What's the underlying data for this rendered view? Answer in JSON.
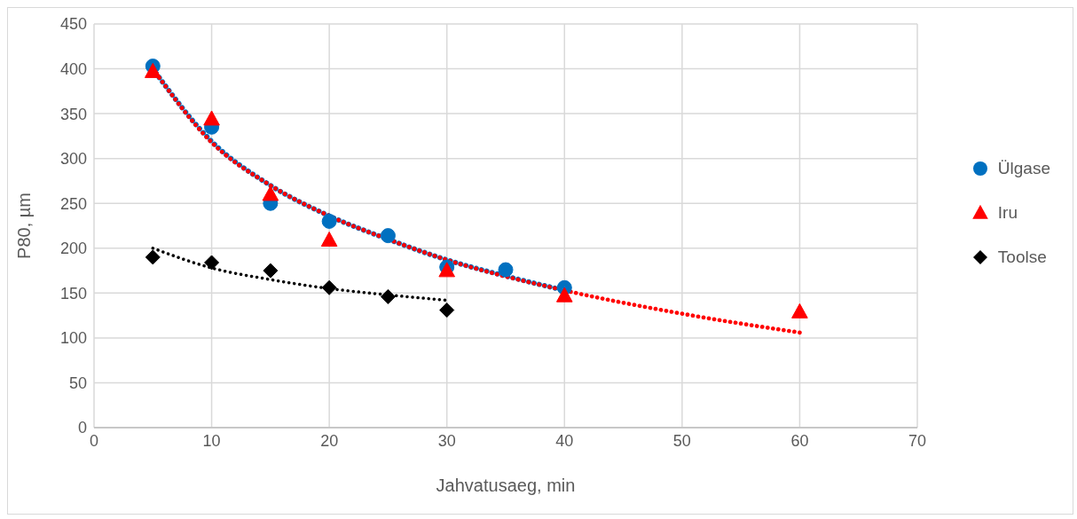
{
  "chart_data": {
    "type": "scatter",
    "xlabel": "Jahvatusaeg, min",
    "ylabel": "P80, µm",
    "xlim": [
      0,
      70
    ],
    "xticks": [
      0,
      10,
      20,
      30,
      40,
      50,
      60,
      70
    ],
    "ylim": [
      0,
      450
    ],
    "yticks": [
      0,
      50,
      100,
      150,
      200,
      250,
      300,
      350,
      400,
      450
    ],
    "grid": true,
    "legend": "right",
    "series": [
      {
        "name": "Ülgase",
        "type": "scatter",
        "color": "#0070c0",
        "marker": "circle",
        "x": [
          5,
          10,
          15,
          20,
          25,
          30,
          35,
          40
        ],
        "values": [
          403,
          335,
          250,
          230,
          214,
          179,
          176,
          156
        ]
      },
      {
        "name": "Iru",
        "type": "scatter",
        "color": "#ff0000",
        "marker": "triangle",
        "x": [
          5,
          10,
          15,
          20,
          30,
          40,
          60
        ],
        "values": [
          397,
          344,
          260,
          209,
          175,
          147,
          129
        ]
      },
      {
        "name": "Toolse",
        "type": "scatter",
        "color": "#000000",
        "marker": "diamond",
        "x": [
          5,
          10,
          15,
          20,
          25,
          30
        ],
        "values": [
          190,
          184,
          175,
          156,
          146,
          131
        ]
      },
      {
        "type": "line",
        "color": "#0070c0",
        "marker": "none",
        "line_style": "dotted",
        "x": [
          5,
          10,
          15,
          20,
          25,
          30,
          35,
          40
        ],
        "values": [
          400,
          319,
          270,
          236,
          210,
          187,
          169,
          153
        ]
      },
      {
        "type": "line",
        "color": "#ff0000",
        "marker": "none",
        "line_style": "dotted",
        "x": [
          5,
          10,
          15,
          20,
          25,
          30,
          40,
          50,
          60
        ],
        "values": [
          400,
          318,
          270,
          236,
          210,
          187,
          153,
          127,
          106
        ]
      },
      {
        "type": "line",
        "color": "#000000",
        "marker": "none",
        "line_style": "dotted",
        "x": [
          5,
          10,
          15,
          20,
          25,
          30
        ],
        "values": [
          200,
          178,
          165,
          155,
          148,
          142
        ]
      }
    ]
  }
}
